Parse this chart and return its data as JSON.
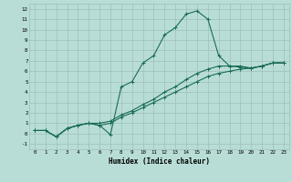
{
  "xlabel": "Humidex (Indice chaleur)",
  "xlim": [
    -0.5,
    23.5
  ],
  "ylim": [
    -1.5,
    12.5
  ],
  "yticks": [
    -1,
    0,
    1,
    2,
    3,
    4,
    5,
    6,
    7,
    8,
    9,
    10,
    11,
    12
  ],
  "xticks": [
    0,
    1,
    2,
    3,
    4,
    5,
    6,
    7,
    8,
    9,
    10,
    11,
    12,
    13,
    14,
    15,
    16,
    17,
    18,
    19,
    20,
    21,
    22,
    23
  ],
  "bg_color": "#b8ddd6",
  "grid_color": "#9dbfba",
  "line_color": "#1a6b5a",
  "line1_x": [
    0,
    1,
    2,
    3,
    4,
    5,
    6,
    7,
    8,
    9,
    10,
    11,
    12,
    13,
    14,
    15,
    16,
    17,
    18,
    19,
    20,
    21,
    22,
    23
  ],
  "line1_y": [
    0.3,
    0.3,
    -0.3,
    0.5,
    0.8,
    1.0,
    0.8,
    -0.1,
    4.5,
    5.0,
    6.8,
    7.5,
    9.5,
    10.2,
    11.5,
    11.8,
    11.0,
    7.5,
    6.5,
    6.5,
    6.3,
    6.5,
    6.8,
    6.8
  ],
  "line2_x": [
    0,
    1,
    2,
    3,
    4,
    5,
    6,
    7,
    8,
    9,
    10,
    11,
    12,
    13,
    14,
    15,
    16,
    17,
    18,
    19,
    20,
    21,
    22,
    23
  ],
  "line2_y": [
    0.3,
    0.3,
    -0.3,
    0.5,
    0.8,
    1.0,
    0.8,
    1.0,
    1.6,
    2.0,
    2.5,
    3.0,
    3.5,
    4.0,
    4.5,
    5.0,
    5.5,
    5.8,
    6.0,
    6.2,
    6.3,
    6.5,
    6.8,
    6.8
  ],
  "line3_x": [
    0,
    1,
    2,
    3,
    4,
    5,
    6,
    7,
    8,
    9,
    10,
    11,
    12,
    13,
    14,
    15,
    16,
    17,
    18,
    19,
    20,
    21,
    22,
    23
  ],
  "line3_y": [
    0.3,
    0.3,
    -0.3,
    0.5,
    0.8,
    1.0,
    1.0,
    1.2,
    1.8,
    2.2,
    2.8,
    3.3,
    4.0,
    4.5,
    5.2,
    5.8,
    6.2,
    6.5,
    6.5,
    6.4,
    6.3,
    6.5,
    6.8,
    6.8
  ]
}
